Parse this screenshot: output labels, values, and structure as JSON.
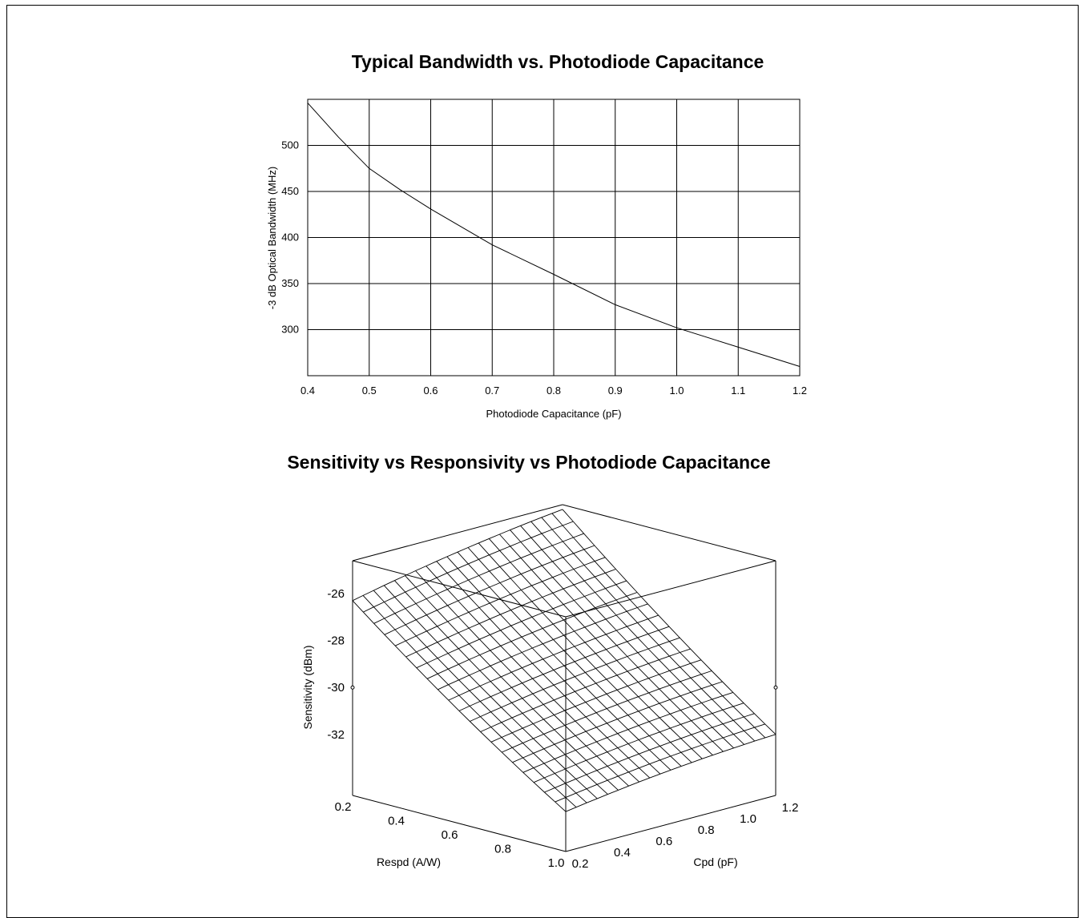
{
  "chart_data": [
    {
      "type": "line",
      "title": "Typical Bandwidth vs. Photodiode Capacitance",
      "xlabel": "Photodiode Capacitance (pF)",
      "ylabel": "-3 dB Optical Bandwidth (MHz)",
      "xlim": [
        0.4,
        1.2
      ],
      "ylim": [
        250,
        550
      ],
      "xticks": [
        "0.4",
        "0.5",
        "0.6",
        "0.7",
        "0.8",
        "0.9",
        "1.0",
        "1.1",
        "1.2"
      ],
      "yticks": [
        "300",
        "350",
        "400",
        "450",
        "500"
      ],
      "grid": true,
      "series": [
        {
          "x": [
            0.4,
            0.45,
            0.5,
            0.55,
            0.6,
            0.7,
            0.8,
            0.9,
            1.0,
            1.1,
            1.2
          ],
          "y": [
            546,
            509,
            475,
            452,
            431,
            392,
            360,
            327,
            302,
            281,
            260
          ]
        }
      ]
    },
    {
      "type": "surface",
      "title": "Sensitivity vs Responsivity vs Photodiode Capacitance",
      "xlabel": "Respd  (A/W)",
      "ylabel": "Cpd (pF)",
      "zlabel": "Sensitivity (dBm)",
      "xticks": [
        "0.2",
        "0.4",
        "0.6",
        "0.8",
        "1.0"
      ],
      "yticks": [
        "0.2",
        "0.4",
        "0.6",
        "0.8",
        "1.0",
        "1.2"
      ],
      "zticks": [
        "-26",
        "-28",
        "-30",
        "-32"
      ],
      "grid_lines": 20,
      "surface_corners": {
        "respd_0.2_cpd_0.2": -26.3,
        "respd_0.2_cpd_1.2": -24.8,
        "respd_1.0_cpd_0.2": -32.9,
        "respd_1.0_cpd_1.2": -32.0
      }
    }
  ]
}
